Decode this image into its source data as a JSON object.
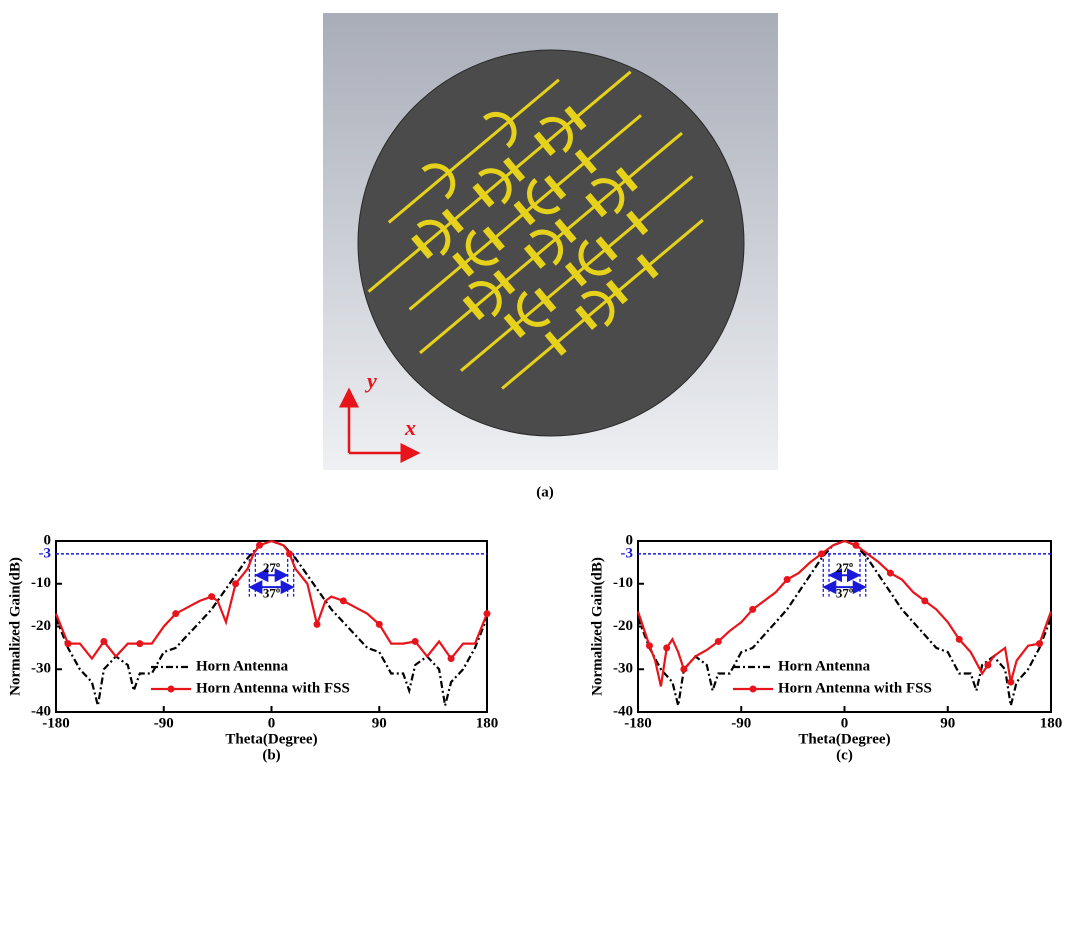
{
  "figure": {
    "panel_label": "(a)",
    "axis_x": "x",
    "axis_y": "y"
  },
  "chart_data": [
    {
      "type": "line",
      "panel_label": "(b)",
      "x_label": "Theta(Degree)",
      "y_label": "Normalized Gain(dB)",
      "xlim": [
        -180,
        180
      ],
      "ylim": [
        -40,
        0
      ],
      "xticks": [
        -180,
        -90,
        0,
        90,
        180
      ],
      "yticks": [
        -40,
        -30,
        -20,
        -10,
        0
      ],
      "hline": -3,
      "beamwidths": [
        {
          "label": "27º",
          "range": [
            -13.5,
            13.5
          ]
        },
        {
          "label": "37º",
          "range": [
            -18.5,
            18.5
          ]
        }
      ],
      "series": [
        {
          "name": "Horn Antenna",
          "color": "#000000",
          "style": "dashdot",
          "x": [
            -180,
            -170,
            -160,
            -150,
            -145,
            -140,
            -130,
            -120,
            -115,
            -110,
            -100,
            -90,
            -80,
            -70,
            -60,
            -50,
            -40,
            -30,
            -20,
            -10,
            0,
            10,
            20,
            30,
            40,
            50,
            60,
            70,
            80,
            90,
            100,
            110,
            115,
            120,
            130,
            140,
            145,
            150,
            160,
            170,
            180
          ],
          "values": [
            -18,
            -25,
            -30,
            -33,
            -38.5,
            -30,
            -27,
            -29,
            -35,
            -31,
            -31,
            -26,
            -25,
            -22,
            -19,
            -16,
            -12,
            -8,
            -4,
            -1,
            0,
            -1,
            -4,
            -8,
            -12,
            -16,
            -19,
            -22,
            -25,
            -26,
            -31,
            -31,
            -35,
            -29,
            -27,
            -30,
            -38.5,
            -33,
            -30,
            -25,
            -18
          ]
        },
        {
          "name": "Horn Antenna with FSS",
          "color": "#e8141b",
          "style": "solid",
          "x": [
            -180,
            -170,
            -160,
            -150,
            -140,
            -130,
            -120,
            -110,
            -100,
            -90,
            -80,
            -70,
            -60,
            -50,
            -45,
            -38,
            -30,
            -20,
            -15,
            -10,
            0,
            10,
            15,
            20,
            30,
            38,
            45,
            50,
            60,
            70,
            80,
            90,
            100,
            110,
            120,
            130,
            140,
            150,
            160,
            170,
            180
          ],
          "values": [
            -17,
            -24,
            -24,
            -27.5,
            -23.5,
            -27,
            -24,
            -24,
            -24,
            -20,
            -17,
            -15.5,
            -14,
            -13,
            -14,
            -19,
            -10,
            -6.5,
            -3,
            -1,
            0,
            -1,
            -3,
            -6.5,
            -10,
            -19.5,
            -14,
            -13,
            -14,
            -15.5,
            -17,
            -19.5,
            -24,
            -24,
            -23.5,
            -27,
            -23.5,
            -27.5,
            -24,
            -24,
            -17
          ]
        }
      ]
    },
    {
      "type": "line",
      "panel_label": "(c)",
      "x_label": "Theta(Degree)",
      "y_label": "Normalized Gain(dB)",
      "xlim": [
        -180,
        180
      ],
      "ylim": [
        -40,
        0
      ],
      "xticks": [
        -180,
        -90,
        0,
        90,
        180
      ],
      "yticks": [
        -40,
        -30,
        -20,
        -10,
        0
      ],
      "hline": -3,
      "beamwidths": [
        {
          "label": "27º",
          "range": [
            -13.5,
            13.5
          ]
        },
        {
          "label": "37º",
          "range": [
            -18.5,
            18.5
          ]
        }
      ],
      "series": [
        {
          "name": "Horn Antenna",
          "color": "#000000",
          "style": "dashdot",
          "x": [
            -180,
            -170,
            -160,
            -150,
            -145,
            -140,
            -130,
            -120,
            -115,
            -110,
            -100,
            -90,
            -80,
            -70,
            -60,
            -50,
            -40,
            -30,
            -20,
            -10,
            0,
            10,
            20,
            30,
            40,
            50,
            60,
            70,
            80,
            90,
            100,
            110,
            115,
            120,
            130,
            140,
            145,
            150,
            160,
            170,
            180
          ],
          "values": [
            -18,
            -25,
            -30,
            -33,
            -38.5,
            -30,
            -27,
            -29,
            -35,
            -31,
            -31,
            -26,
            -25,
            -22,
            -19,
            -16,
            -12,
            -8,
            -4,
            -1,
            0,
            -1,
            -4,
            -8,
            -12,
            -16,
            -19,
            -22,
            -25,
            -26,
            -31,
            -31,
            -35,
            -29,
            -27,
            -30,
            -38.5,
            -33,
            -30,
            -25,
            -18
          ]
        },
        {
          "name": "Horn Antenna with FSS",
          "color": "#e8141b",
          "style": "solid",
          "x": [
            -180,
            -170,
            -165,
            -160,
            -155,
            -150,
            -145,
            -140,
            -130,
            -120,
            -110,
            -100,
            -90,
            -80,
            -70,
            -60,
            -50,
            -40,
            -30,
            -20,
            -10,
            0,
            10,
            20,
            30,
            40,
            50,
            60,
            70,
            80,
            90,
            100,
            110,
            120,
            125,
            130,
            140,
            145,
            150,
            160,
            170,
            180
          ],
          "values": [
            -16.5,
            -24.5,
            -28,
            -34,
            -25,
            -23,
            -26,
            -30,
            -27,
            -25.5,
            -23.5,
            -21,
            -19,
            -16,
            -14,
            -12,
            -9,
            -7.5,
            -5,
            -3,
            -1,
            0,
            -1,
            -3,
            -5,
            -7.5,
            -9,
            -12,
            -14,
            -16,
            -19,
            -23,
            -26,
            -31,
            -29,
            -27,
            -25,
            -33,
            -28,
            -24.5,
            -24,
            -16.5
          ]
        }
      ]
    }
  ]
}
